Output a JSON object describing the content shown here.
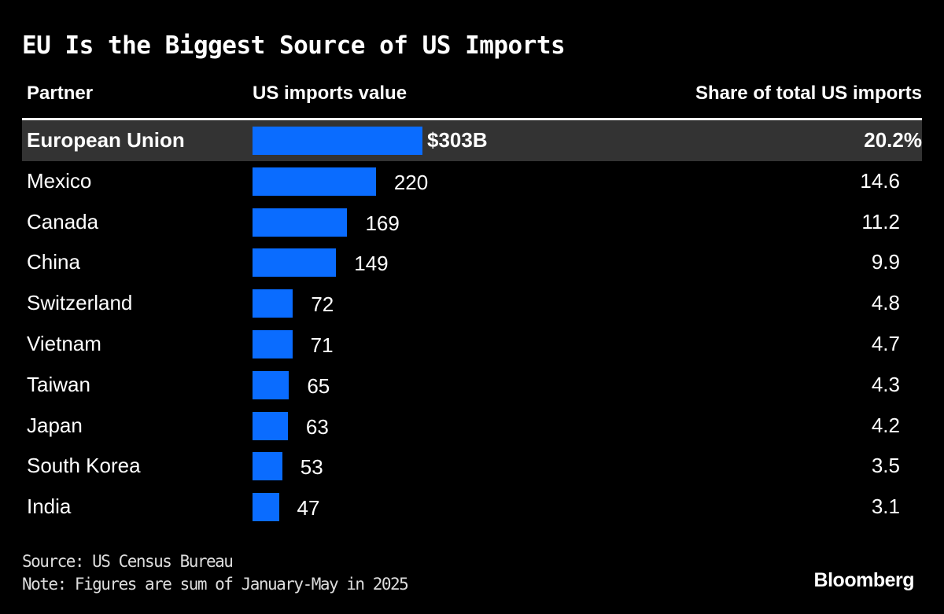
{
  "chart_data": {
    "type": "bar",
    "orientation": "horizontal",
    "title": "EU Is the Biggest Source of US Imports",
    "columns": [
      "Partner",
      "US imports value",
      "Share of total US imports"
    ],
    "categories": [
      "European Union",
      "Mexico",
      "Canada",
      "China",
      "Switzerland",
      "Vietnam",
      "Taiwan",
      "Japan",
      "South Korea",
      "India"
    ],
    "values": [
      303,
      220,
      169,
      149,
      72,
      71,
      65,
      63,
      53,
      47
    ],
    "value_labels": [
      "$303B",
      "220",
      "169",
      "149",
      "72",
      "71",
      "65",
      "63",
      "53",
      "47"
    ],
    "shares": [
      "20.2%",
      "14.6",
      "11.2",
      "9.9",
      "4.8",
      "4.7",
      "4.3",
      "4.2",
      "3.5",
      "3.1"
    ],
    "highlighted": "European Union",
    "bar_color": "#0a6cff",
    "background": "#000000",
    "source": "Source: US Census Bureau",
    "note": "Note: Figures are sum of January-May in 2025",
    "brand": "Bloomberg"
  }
}
